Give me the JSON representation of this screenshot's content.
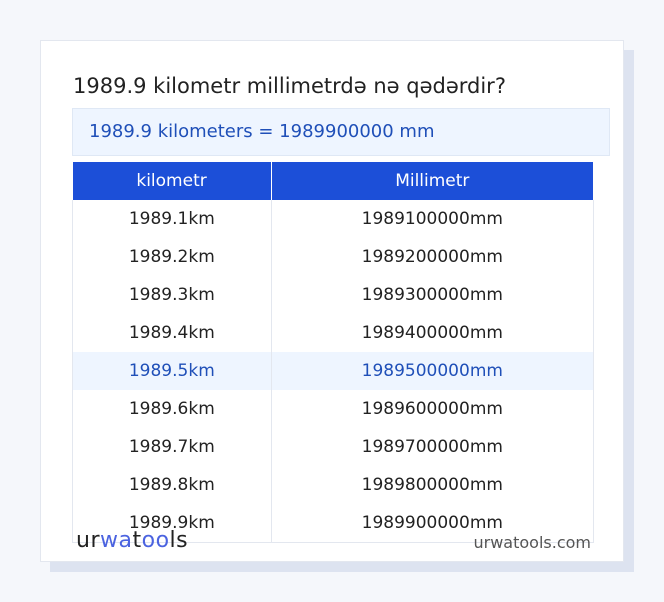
{
  "title": "1989.9 kilometr millimetrdə nə qədərdir?",
  "result": "1989.9 kilometers = 1989900000 mm",
  "table": {
    "headers": [
      "kilometr",
      "Millimetr"
    ],
    "rows": [
      [
        "1989.1km",
        "1989100000mm"
      ],
      [
        "1989.2km",
        "1989200000mm"
      ],
      [
        "1989.3km",
        "1989300000mm"
      ],
      [
        "1989.4km",
        "1989400000mm"
      ],
      [
        "1989.5km",
        "1989500000mm"
      ],
      [
        "1989.6km",
        "1989600000mm"
      ],
      [
        "1989.7km",
        "1989700000mm"
      ],
      [
        "1989.8km",
        "1989800000mm"
      ],
      [
        "1989.9km",
        "1989900000mm"
      ]
    ],
    "highlighted_row": 4
  },
  "footer": {
    "logo": "urwatools",
    "site": "urwatools.com"
  },
  "colors": {
    "accent": "#1c4fd8",
    "highlight_bg": "#eef5ff",
    "highlight_text": "#1f4fb8"
  }
}
